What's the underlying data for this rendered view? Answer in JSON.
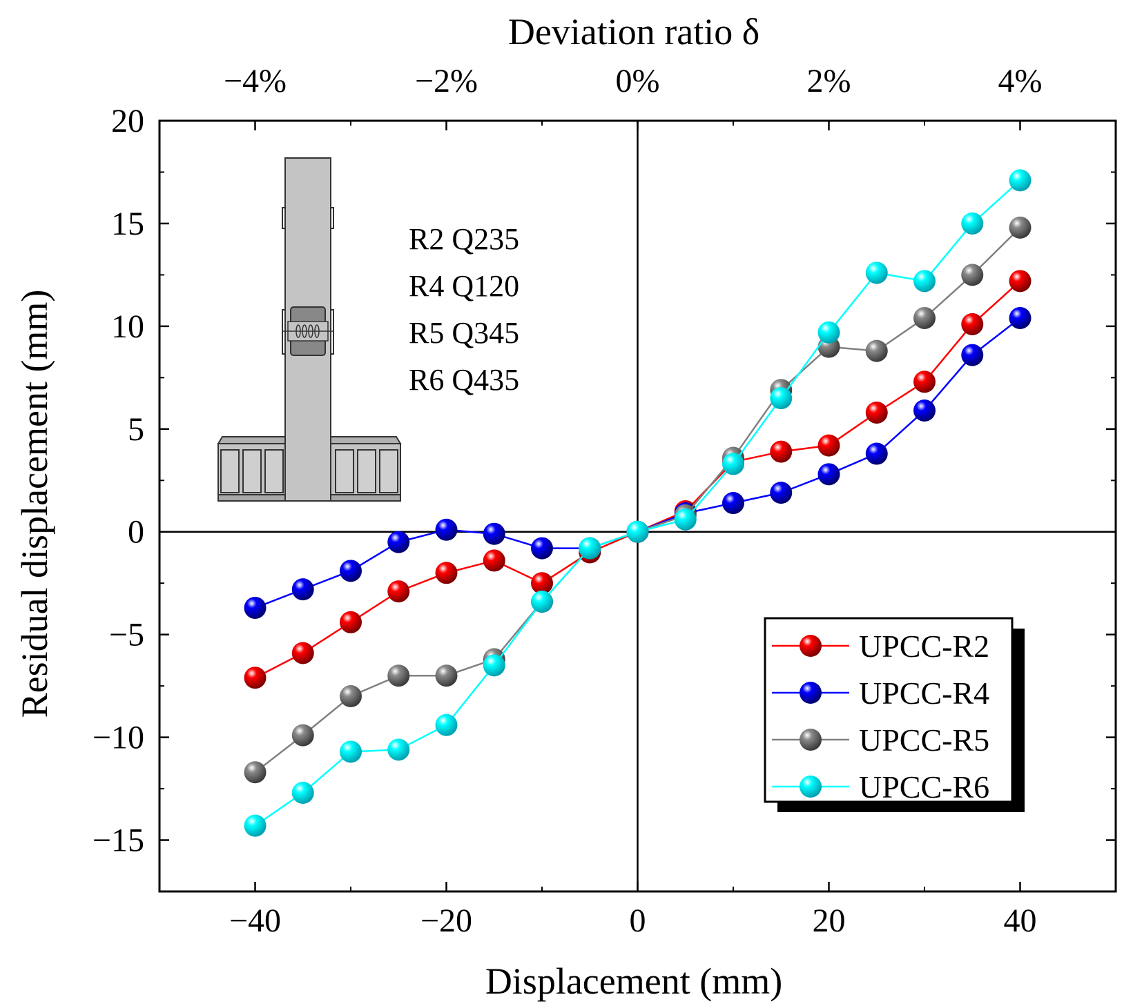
{
  "chart_data": {
    "type": "line",
    "xlabel": "Displacement (mm)",
    "ylabel": "Residual displacement (mm)",
    "top_xlabel": "Deviation ratio δ",
    "xlim": [
      -50,
      50
    ],
    "ylim": [
      -17.5,
      20
    ],
    "x_ticks": [
      -40,
      -20,
      0,
      20,
      40
    ],
    "x_tick_labels": [
      "−40",
      "−20",
      "0",
      "20",
      "40"
    ],
    "y_ticks": [
      -15,
      -10,
      -5,
      0,
      5,
      10,
      15,
      20
    ],
    "y_tick_labels": [
      "−15",
      "−10",
      "−5",
      "0",
      "5",
      "10",
      "15",
      "20"
    ],
    "top_ticks": [
      -40,
      -20,
      0,
      20,
      40
    ],
    "top_tick_labels": [
      "−4%",
      "−2%",
      "0%",
      "2%",
      "4%"
    ],
    "x": [
      -40,
      -35,
      -30,
      -25,
      -20,
      -15,
      -10,
      -5,
      0,
      5,
      10,
      15,
      20,
      25,
      30,
      35,
      40
    ],
    "series": [
      {
        "name": "UPCC-R2",
        "color": "#ff0000",
        "values": [
          -7.1,
          -5.9,
          -4.4,
          -2.9,
          -2.0,
          -1.4,
          -2.5,
          -1.0,
          0,
          1.0,
          3.4,
          3.9,
          4.2,
          5.8,
          7.3,
          10.1,
          12.2
        ]
      },
      {
        "name": "UPCC-R4",
        "color": "#0000ff",
        "values": [
          -3.7,
          -2.8,
          -1.9,
          -0.5,
          0.1,
          -0.1,
          -0.8,
          -0.8,
          0,
          0.9,
          1.4,
          1.9,
          2.8,
          3.8,
          5.9,
          8.6,
          10.4
        ]
      },
      {
        "name": "UPCC-R5",
        "color": "#808080",
        "values": [
          -11.7,
          -9.9,
          -8.0,
          -7.0,
          -7.0,
          -6.2,
          -3.4,
          -0.8,
          0,
          0.8,
          3.6,
          6.9,
          9.0,
          8.8,
          10.4,
          12.5,
          14.8
        ]
      },
      {
        "name": "UPCC-R6",
        "color": "#00ffff",
        "values": [
          -14.3,
          -12.7,
          -10.7,
          -10.6,
          -9.4,
          -6.5,
          -3.4,
          -0.8,
          0,
          0.6,
          3.3,
          6.5,
          9.7,
          12.6,
          12.2,
          15.0,
          17.1
        ]
      }
    ],
    "legend_position": "bottom-right",
    "annotations": [
      "R2 Q235",
      "R4 Q120",
      "R5 Q345",
      "R6 Q435"
    ]
  }
}
